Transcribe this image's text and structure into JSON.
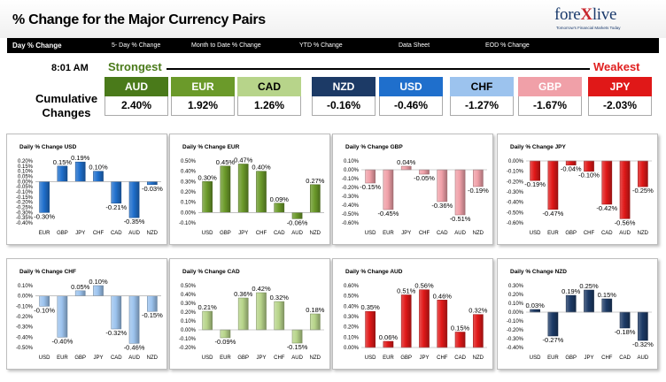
{
  "header": {
    "title": "% Change for the Major Currency Pairs",
    "logo_text_a": "fore",
    "logo_text_x": "X",
    "logo_text_b": "live",
    "logo_tagline": "Tomorrow's Financial Markets Today"
  },
  "nav": {
    "items": [
      {
        "label": "Day % Change",
        "active": true
      },
      {
        "label": "5- Day % Change",
        "active": false
      },
      {
        "label": "Month to Date % Change",
        "active": false
      },
      {
        "label": "YTD % Change",
        "active": false
      },
      {
        "label": "Data Sheet",
        "active": false
      },
      {
        "label": "EOD % Change",
        "active": false
      }
    ]
  },
  "summary": {
    "time": "8:01 AM",
    "strongest_label": "Strongest",
    "weakest_label": "Weakest",
    "cumulative_label": "Cumulative Changes",
    "currencies": [
      {
        "code": "AUD",
        "value": "2.40%",
        "color": "#4a7a1a",
        "text_color": "#ffffff"
      },
      {
        "code": "EUR",
        "value": "1.92%",
        "color": "#6b9a2a",
        "text_color": "#ffffff"
      },
      {
        "code": "CAD",
        "value": "1.26%",
        "color": "#b7d48a",
        "text_color": "#000000"
      },
      {
        "code": "NZD",
        "value": "-0.16%",
        "color": "#1c3a66",
        "text_color": "#ffffff"
      },
      {
        "code": "USD",
        "value": "-0.46%",
        "color": "#1f6fcc",
        "text_color": "#ffffff"
      },
      {
        "code": "CHF",
        "value": "-1.27%",
        "color": "#9cc3ee",
        "text_color": "#000000"
      },
      {
        "code": "GBP",
        "value": "-1.67%",
        "color": "#f0a0a8",
        "text_color": "#ffffff"
      },
      {
        "code": "JPY",
        "value": "-2.03%",
        "color": "#e01818",
        "text_color": "#ffffff"
      }
    ]
  },
  "chart_data": [
    {
      "type": "bar",
      "title": "Daily % Change USD",
      "categories": [
        "EUR",
        "GBP",
        "JPY",
        "CHF",
        "CAD",
        "AUD",
        "NZD"
      ],
      "values": [
        -0.3,
        0.15,
        0.19,
        0.1,
        -0.21,
        -0.35,
        -0.03
      ],
      "labels": [
        "-0.30%",
        "0.15%",
        "0.19%",
        "0.10%",
        "-0.21%",
        "-0.35%",
        "-0.03%"
      ],
      "ylim": [
        -0.4,
        0.2
      ],
      "step": 0.1,
      "yticks": [
        "0.20%",
        "0.15%",
        "0.10%",
        "0.05%",
        "0.00%",
        "-0.05%",
        "-0.10%",
        "-0.15%",
        "-0.20%",
        "-0.25%",
        "-0.30%",
        "-0.35%",
        "-0.40%"
      ],
      "color": "#1f6fcc"
    },
    {
      "type": "bar",
      "title": "Daily % Change EUR",
      "categories": [
        "USD",
        "GBP",
        "JPY",
        "CHF",
        "CAD",
        "AUD",
        "NZD"
      ],
      "values": [
        0.3,
        0.45,
        0.47,
        0.4,
        0.09,
        -0.06,
        0.27
      ],
      "labels": [
        "0.30%",
        "0.45%",
        "0.47%",
        "0.40%",
        "0.09%",
        "-0.06%",
        "0.27%"
      ],
      "ylim": [
        -0.1,
        0.5
      ],
      "step": 0.1,
      "yticks": [
        "0.50%",
        "0.40%",
        "0.30%",
        "0.20%",
        "0.10%",
        "0.00%",
        "-0.10%"
      ],
      "color": "#6b9a2a"
    },
    {
      "type": "bar",
      "title": "Daily % Change GBP",
      "categories": [
        "USD",
        "EUR",
        "JPY",
        "CHF",
        "CAD",
        "AUD",
        "NZD"
      ],
      "values": [
        -0.15,
        -0.45,
        0.04,
        -0.05,
        -0.36,
        -0.51,
        -0.19
      ],
      "labels": [
        "-0.15%",
        "-0.45%",
        "0.04%",
        "-0.05%",
        "-0.36%",
        "-0.51%",
        "-0.19%"
      ],
      "ylim": [
        -0.6,
        0.1
      ],
      "step": 0.1,
      "yticks": [
        "0.10%",
        "0.00%",
        "-0.10%",
        "-0.20%",
        "-0.30%",
        "-0.40%",
        "-0.50%",
        "-0.60%"
      ],
      "color": "#f0a0a8"
    },
    {
      "type": "bar",
      "title": "Daily % Change JPY",
      "categories": [
        "USD",
        "EUR",
        "GBP",
        "CHF",
        "CAD",
        "AUD",
        "NZD"
      ],
      "values": [
        -0.19,
        -0.47,
        -0.04,
        -0.1,
        -0.42,
        -0.56,
        -0.25
      ],
      "labels": [
        "-0.19%",
        "-0.47%",
        "-0.04%",
        "-0.10%",
        "-0.42%",
        "-0.56%",
        "-0.25%"
      ],
      "ylim": [
        -0.6,
        0.0
      ],
      "step": 0.1,
      "yticks": [
        "0.00%",
        "-0.10%",
        "-0.20%",
        "-0.30%",
        "-0.40%",
        "-0.50%",
        "-0.60%"
      ],
      "color": "#e01818"
    },
    {
      "type": "bar",
      "title": "Daily % Change CHF",
      "categories": [
        "USD",
        "EUR",
        "GBP",
        "JPY",
        "CAD",
        "AUD",
        "NZD"
      ],
      "values": [
        -0.1,
        -0.4,
        0.05,
        0.1,
        -0.32,
        -0.46,
        -0.15
      ],
      "labels": [
        "-0.10%",
        "-0.40%",
        "0.05%",
        "0.10%",
        "-0.32%",
        "-0.46%",
        "-0.15%"
      ],
      "ylim": [
        -0.5,
        0.1
      ],
      "step": 0.1,
      "yticks": [
        "0.10%",
        "0.00%",
        "-0.10%",
        "-0.20%",
        "-0.30%",
        "-0.40%",
        "-0.50%"
      ],
      "color": "#9cc3ee"
    },
    {
      "type": "bar",
      "title": "Daily % Change CAD",
      "categories": [
        "USD",
        "EUR",
        "GBP",
        "JPY",
        "CHF",
        "AUD",
        "NZD"
      ],
      "values": [
        0.21,
        -0.09,
        0.36,
        0.42,
        0.32,
        -0.15,
        0.18
      ],
      "labels": [
        "0.21%",
        "-0.09%",
        "0.36%",
        "0.42%",
        "0.32%",
        "-0.15%",
        "0.18%"
      ],
      "ylim": [
        -0.2,
        0.5
      ],
      "step": 0.1,
      "yticks": [
        "0.50%",
        "0.40%",
        "0.30%",
        "0.20%",
        "0.10%",
        "0.00%",
        "-0.10%",
        "-0.20%"
      ],
      "color": "#b7d48a"
    },
    {
      "type": "bar",
      "title": "Daily % Change AUD",
      "categories": [
        "USD",
        "EUR",
        "GBP",
        "JPY",
        "CHF",
        "CAD",
        "NZD"
      ],
      "values": [
        0.35,
        0.06,
        0.51,
        0.56,
        0.46,
        0.15,
        0.32
      ],
      "labels": [
        "0.35%",
        "0.06%",
        "0.51%",
        "0.56%",
        "0.46%",
        "0.15%",
        "0.32%"
      ],
      "ylim": [
        0.0,
        0.6
      ],
      "step": 0.1,
      "yticks": [
        "0.60%",
        "0.50%",
        "0.40%",
        "0.30%",
        "0.20%",
        "0.10%",
        "0.00%"
      ],
      "color": "#e01818"
    },
    {
      "type": "bar",
      "title": "Daily % Change NZD",
      "categories": [
        "USD",
        "EUR",
        "GBP",
        "JPY",
        "CHF",
        "CAD",
        "AUD"
      ],
      "values": [
        0.03,
        -0.27,
        0.19,
        0.25,
        0.15,
        -0.18,
        -0.32
      ],
      "labels": [
        "0.03%",
        "-0.27%",
        "0.19%",
        "0.25%",
        "0.15%",
        "-0.18%",
        "-0.32%"
      ],
      "ylim": [
        -0.4,
        0.3
      ],
      "step": 0.1,
      "yticks": [
        "0.30%",
        "0.20%",
        "0.10%",
        "0.00%",
        "-0.10%",
        "-0.20%",
        "-0.30%",
        "-0.40%"
      ],
      "color": "#1c3a66"
    }
  ]
}
